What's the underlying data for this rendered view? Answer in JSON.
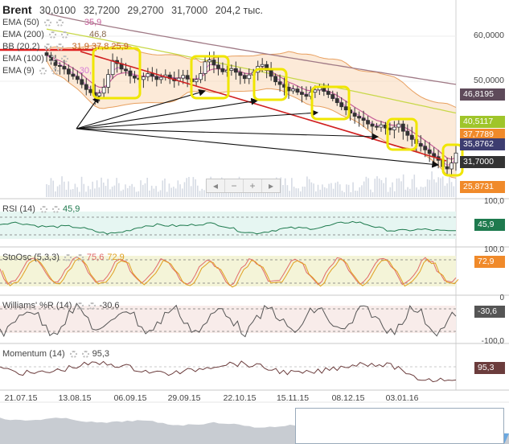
{
  "header": {
    "symbol": "Brent",
    "open": "30,0100",
    "high": "32,7200",
    "low": "29,2700",
    "close": "31,7000",
    "volume": "204,2 тыс."
  },
  "legend": [
    {
      "label": "EMA (50)",
      "value": "35,9",
      "color": "#c75f9a"
    },
    {
      "label": "EMA (200)",
      "value": "46,8",
      "color": "#b88a5e"
    },
    {
      "label": "BB (20,2)",
      "value": "31,9  37,8  25,9",
      "color": "#e07830"
    },
    {
      "label": "EMA (100)",
      "value": "",
      "color": "#b6c832"
    },
    {
      "label": "EMA (9)",
      "value": "30,",
      "color": "#d67ad6"
    }
  ],
  "price_tags": [
    {
      "text": "46,8195",
      "color": "#5e4a5a"
    },
    {
      "text": "40,5117",
      "color": "#9fc52a"
    },
    {
      "text": "37,7789",
      "color": "#f08a2a"
    },
    {
      "text": "35,8762",
      "color": "#3d3d70"
    },
    {
      "text": "31,7000",
      "color": "#333333"
    },
    {
      "text": "25,8731",
      "color": "#f08a2a"
    }
  ],
  "price_axis": [
    "60,0000",
    "50,0000"
  ],
  "nav_buttons": [
    "◂",
    "−",
    "+",
    "▸"
  ],
  "x_labels": [
    "21.07.15",
    "13.08.15",
    "06.09.15",
    "29.09.15",
    "22.10.15",
    "15.11.15",
    "08.12.15",
    "03.01.16"
  ],
  "panels": [
    {
      "title": "RSI (14)",
      "value": "45,9",
      "value_color": "#1e7a4e",
      "axis_top": "100,0",
      "tag": "45,9",
      "tag_color": "#1e7a4e"
    },
    {
      "title": "StoOsc (5,3,3)",
      "value": "75,6",
      "value2": "72,9",
      "value_color": "#e06a6a",
      "value2_color": "#e0a020",
      "axis_top": "100,0",
      "tag": "72,9",
      "tag_color": "#f08a2a"
    },
    {
      "title": "Williams' %R (14)",
      "value": "-30,6",
      "value_color": "#444444",
      "axis_top": "0",
      "tag": "-30,6",
      "tag_color": "#555555",
      "axis_bottom": "-100,0"
    },
    {
      "title": "Momentum (14)",
      "value": "95,3",
      "value_color": "#444444",
      "tag": "95,3",
      "tag_color": "#6b3c3c"
    }
  ],
  "chart_data": {
    "type": "candlestick",
    "title": "Brent",
    "x_start": "21.07.15",
    "x_end": "03.01.16",
    "ylim": [
      22,
      64
    ],
    "close_series": [
      53.2,
      52.1,
      51.0,
      50.8,
      50.2,
      49.1,
      48.6,
      47.9,
      46.8,
      45.7,
      45.0,
      44.3,
      44.9,
      46.2,
      49.0,
      52.1,
      51.4,
      50.2,
      49.8,
      48.7,
      48.2,
      47.9,
      48.5,
      49.2,
      48.6,
      47.9,
      48.4,
      48.9,
      48.1,
      47.6,
      48.2,
      48.8,
      48.0,
      47.4,
      47.9,
      49.2,
      51.8,
      52.2,
      51.1,
      50.3,
      49.6,
      49.9,
      50.3,
      49.5,
      48.8,
      48.1,
      48.9,
      49.5,
      50.8,
      51.2,
      49.9,
      48.6,
      47.4,
      46.8,
      46.2,
      45.4,
      45.8,
      45.1,
      44.6,
      44.2,
      45.1,
      45.6,
      46.2,
      45.3,
      44.6,
      43.7,
      42.8,
      41.9,
      41.2,
      40.5,
      39.8,
      39.4,
      38.9,
      38.1,
      37.6,
      37.4,
      37.9,
      37.2,
      36.8,
      37.4,
      38.1,
      36.5,
      35.6,
      34.7,
      33.8,
      33.2,
      32.4,
      31.6,
      30.9,
      30.1,
      28.7,
      28.2,
      29.5,
      31.7
    ],
    "ema200_end": 46.8195,
    "ema100_end": 40.5117,
    "bb_upper_end": 37.7789,
    "ema50_end": 35.8762,
    "close_last": 31.7,
    "bb_lower_end": 25.8731,
    "rsi_last": 45.9,
    "stoch_k_last": 75.6,
    "stoch_d_last": 72.9,
    "williams_r_last": -30.6,
    "momentum_last": 95.3
  }
}
